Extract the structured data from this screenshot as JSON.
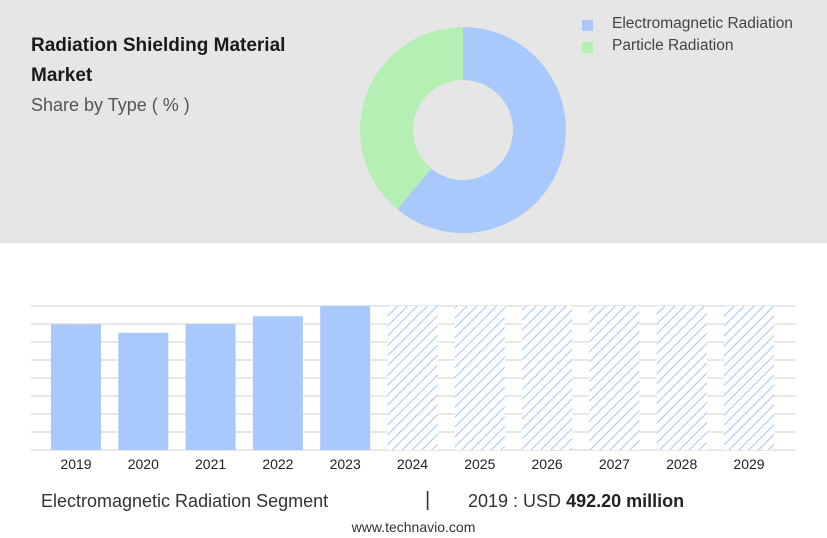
{
  "header": {
    "title": "Radiation Shielding Material Market",
    "subtitle": "Share by Type ( % )"
  },
  "legend": [
    {
      "label": "Electromagnetic Radiation",
      "color": "#a9c8fb"
    },
    {
      "label": "Particle Radiation",
      "color": "#b5efb4"
    }
  ],
  "chart_data": [
    {
      "type": "pie",
      "title": "Share by Type ( % )",
      "labels": [
        "Electromagnetic Radiation",
        "Particle Radiation"
      ],
      "values": [
        61,
        39
      ],
      "colors": [
        "#a9c8fb",
        "#b5efb4"
      ],
      "donut": true
    },
    {
      "type": "bar",
      "categories": [
        "2019",
        "2020",
        "2021",
        "2022",
        "2023",
        "2024",
        "2025",
        "2026",
        "2027",
        "2028",
        "2029"
      ],
      "values": [
        492.2,
        460,
        494,
        525,
        565,
        565,
        565,
        565,
        565,
        565,
        565
      ],
      "forecast_from": "2024",
      "bar_color": "#a9c8fb",
      "grid": true
    }
  ],
  "footer": {
    "segment": "Electromagnetic Radiation Segment",
    "separator": "|",
    "year_value_prefix": "2019 : USD",
    "year_value": "492.20 million",
    "website": "www.technavio.com"
  }
}
